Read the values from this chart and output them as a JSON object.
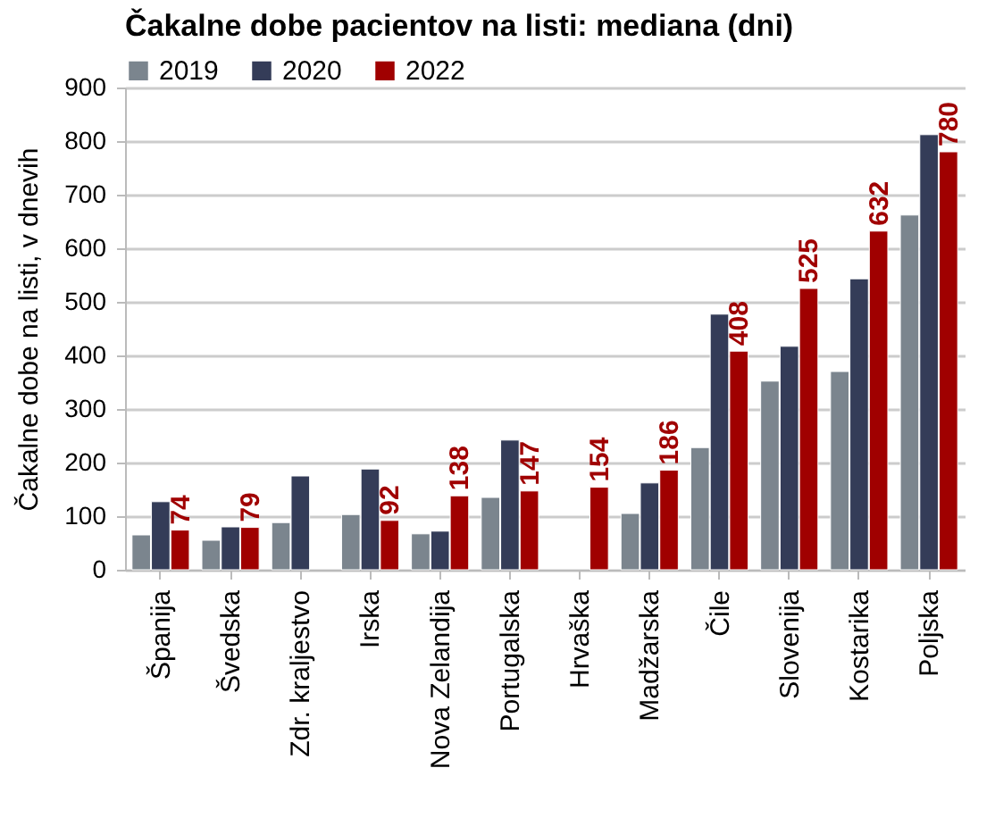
{
  "chart_data": {
    "type": "bar",
    "title": "Čakalne dobe pacientov na listi: mediana (dni)",
    "ylabel": "Čakalne dobe na listi, v dnevih",
    "categories": [
      "Španija",
      "Švedska",
      "Zdr. kraljestvo",
      "Irska",
      "Nova Zelandija",
      "Portugalska",
      "Hrvaška",
      "Madžarska",
      "Čile",
      "Slovenija",
      "Kostarika",
      "Poljska"
    ],
    "series": [
      {
        "name": "2019",
        "color": "#7b858e",
        "values": [
          65,
          55,
          88,
          103,
          67,
          135,
          null,
          105,
          228,
          352,
          370,
          662
        ]
      },
      {
        "name": "2020",
        "color": "#343c58",
        "values": [
          127,
          80,
          175,
          188,
          72,
          242,
          null,
          162,
          477,
          417,
          543,
          812
        ]
      },
      {
        "name": "2022",
        "color": "#a00000",
        "values": [
          74,
          79,
          null,
          92,
          138,
          147,
          154,
          186,
          408,
          525,
          632,
          780
        ],
        "value_labels": [
          "74",
          "79",
          null,
          "92",
          "138",
          "147",
          "154",
          "186",
          "408",
          "525",
          "632",
          "780"
        ]
      }
    ],
    "ylim": [
      0,
      900
    ],
    "yticks": [
      0,
      100,
      200,
      300,
      400,
      500,
      600,
      700,
      800,
      900
    ],
    "grid": "y",
    "legend": "top left"
  }
}
